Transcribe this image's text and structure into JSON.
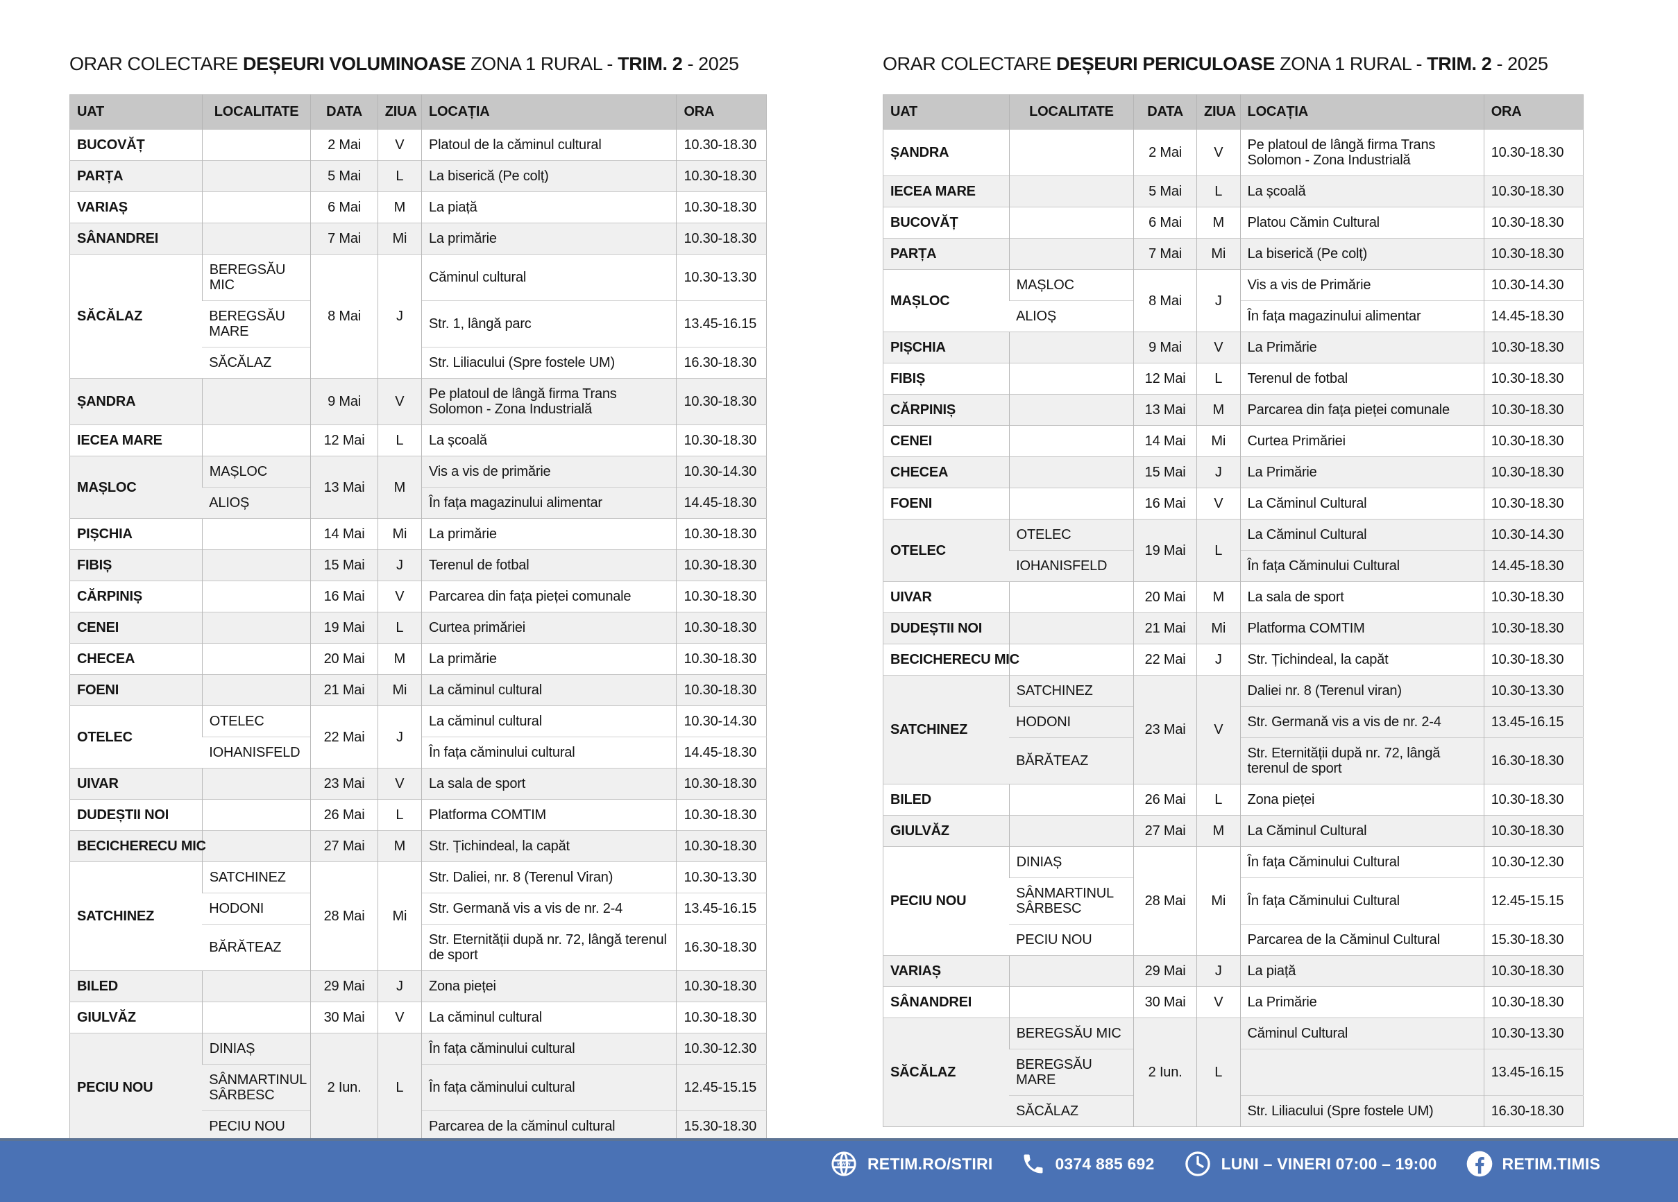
{
  "colors": {
    "footer_blue": "#4a72b5",
    "footer_edge": "#5d7494",
    "header_gray": "#c7c7c7",
    "row_alt_gray": "#f0f0f0"
  },
  "tables": [
    {
      "title": {
        "prefix": "ORAR COLECTARE ",
        "category": "DEȘEURI VOLUMINOASE",
        "middle": " ZONA 1 RURAL - ",
        "trim": "TRIM. 2",
        "suffix": " - 2025"
      },
      "columns": [
        "UAT",
        "LOCALITATE",
        "DATA",
        "ZIUA",
        "LOCAȚIA",
        "ORA"
      ],
      "groups": [
        {
          "uat": "BUCOVĂȚ",
          "date": "2 Mai",
          "day": "V",
          "sub": [
            {
              "loc": "",
              "place": "Platoul de la căminul cultural",
              "time": "10.30-18.30"
            }
          ]
        },
        {
          "uat": "PARȚA",
          "date": "5 Mai",
          "day": "L",
          "sub": [
            {
              "loc": "",
              "place": "La biserică (Pe colț)",
              "time": "10.30-18.30"
            }
          ]
        },
        {
          "uat": "VARIAȘ",
          "date": "6 Mai",
          "day": "M",
          "sub": [
            {
              "loc": "",
              "place": "La piață",
              "time": "10.30-18.30"
            }
          ]
        },
        {
          "uat": "SÂNANDREI",
          "date": "7 Mai",
          "day": "Mi",
          "sub": [
            {
              "loc": "",
              "place": "La primărie",
              "time": "10.30-18.30"
            }
          ]
        },
        {
          "uat": "SĂCĂLAZ",
          "date": "8 Mai",
          "day": "J",
          "sub": [
            {
              "loc": "BEREGSĂU MIC",
              "place": "Căminul cultural",
              "time": "10.30-13.30"
            },
            {
              "loc": "BEREGSĂU MARE",
              "place": "Str. 1, lângă parc",
              "time": "13.45-16.15"
            },
            {
              "loc": "SĂCĂLAZ",
              "place": "Str. Liliacului (Spre fostele UM)",
              "time": "16.30-18.30"
            }
          ]
        },
        {
          "uat": "ȘANDRA",
          "date": "9 Mai",
          "day": "V",
          "sub": [
            {
              "loc": "",
              "place": "Pe platoul de lângă firma Trans Solomon - Zona Industrială",
              "time": "10.30-18.30"
            }
          ]
        },
        {
          "uat": "IECEA MARE",
          "date": "12 Mai",
          "day": "L",
          "sub": [
            {
              "loc": "",
              "place": "La școală",
              "time": "10.30-18.30"
            }
          ]
        },
        {
          "uat": "MAȘLOC",
          "date": "13 Mai",
          "day": "M",
          "sub": [
            {
              "loc": "MAȘLOC",
              "place": "Vis a vis de primărie",
              "time": "10.30-14.30"
            },
            {
              "loc": "ALIOȘ",
              "place": "În fața magazinului alimentar",
              "time": "14.45-18.30"
            }
          ]
        },
        {
          "uat": "PIȘCHIA",
          "date": "14 Mai",
          "day": "Mi",
          "sub": [
            {
              "loc": "",
              "place": "La primărie",
              "time": "10.30-18.30"
            }
          ]
        },
        {
          "uat": "FIBIȘ",
          "date": "15 Mai",
          "day": "J",
          "sub": [
            {
              "loc": "",
              "place": "Terenul de fotbal",
              "time": "10.30-18.30"
            }
          ]
        },
        {
          "uat": "CĂRPINIȘ",
          "date": "16 Mai",
          "day": "V",
          "sub": [
            {
              "loc": "",
              "place": "Parcarea din fața pieței comunale",
              "time": "10.30-18.30"
            }
          ]
        },
        {
          "uat": "CENEI",
          "date": "19 Mai",
          "day": "L",
          "sub": [
            {
              "loc": "",
              "place": "Curtea primăriei",
              "time": "10.30-18.30"
            }
          ]
        },
        {
          "uat": "CHECEA",
          "date": "20 Mai",
          "day": "M",
          "sub": [
            {
              "loc": "",
              "place": "La primărie",
              "time": "10.30-18.30"
            }
          ]
        },
        {
          "uat": "FOENI",
          "date": "21 Mai",
          "day": "Mi",
          "sub": [
            {
              "loc": "",
              "place": "La căminul cultural",
              "time": "10.30-18.30"
            }
          ]
        },
        {
          "uat": "OTELEC",
          "date": "22 Mai",
          "day": "J",
          "sub": [
            {
              "loc": "OTELEC",
              "place": "La căminul cultural",
              "time": "10.30-14.30"
            },
            {
              "loc": "IOHANISFELD",
              "place": "În fața căminului cultural",
              "time": "14.45-18.30"
            }
          ]
        },
        {
          "uat": "UIVAR",
          "date": "23 Mai",
          "day": "V",
          "sub": [
            {
              "loc": "",
              "place": "La sala de sport",
              "time": "10.30-18.30"
            }
          ]
        },
        {
          "uat": "DUDEȘTII NOI",
          "date": "26 Mai",
          "day": "L",
          "sub": [
            {
              "loc": "",
              "place": "Platforma COMTIM",
              "time": "10.30-18.30"
            }
          ]
        },
        {
          "uat": "BECICHERECU MIC",
          "date": "27 Mai",
          "day": "M",
          "sub": [
            {
              "loc": "",
              "place": "Str. Țichindeal, la capăt",
              "time": "10.30-18.30"
            }
          ]
        },
        {
          "uat": "SATCHINEZ",
          "date": "28 Mai",
          "day": "Mi",
          "sub": [
            {
              "loc": "SATCHINEZ",
              "place": "Str. Daliei, nr. 8 (Terenul Viran)",
              "time": "10.30-13.30"
            },
            {
              "loc": "HODONI",
              "place": "Str. Germană vis a vis de nr. 2-4",
              "time": "13.45-16.15"
            },
            {
              "loc": "BĂRĂTEAZ",
              "place": "Str. Eternității după nr. 72, lângă terenul de sport",
              "time": "16.30-18.30"
            }
          ]
        },
        {
          "uat": "BILED",
          "date": "29 Mai",
          "day": "J",
          "sub": [
            {
              "loc": "",
              "place": "Zona pieței",
              "time": "10.30-18.30"
            }
          ]
        },
        {
          "uat": "GIULVĂZ",
          "date": "30 Mai",
          "day": "V",
          "sub": [
            {
              "loc": "",
              "place": "La căminul cultural",
              "time": "10.30-18.30"
            }
          ]
        },
        {
          "uat": "PECIU NOU",
          "date": "2 Iun.",
          "day": "L",
          "sub": [
            {
              "loc": "DINIAȘ",
              "place": "În fața căminului cultural",
              "time": "10.30-12.30"
            },
            {
              "loc": "SÂNMARTINUL SÂRBESC",
              "place": "În fața căminului cultural",
              "time": "12.45-15.15"
            },
            {
              "loc": "PECIU NOU",
              "place": "Parcarea de la căminul cultural",
              "time": "15.30-18.30"
            }
          ]
        }
      ]
    },
    {
      "title": {
        "prefix": "ORAR COLECTARE ",
        "category": "DEȘEURI PERICULOASE",
        "middle": " ZONA 1 RURAL - ",
        "trim": "TRIM. 2",
        "suffix": " - 2025"
      },
      "columns": [
        "UAT",
        "LOCALITATE",
        "DATA",
        "ZIUA",
        "LOCAȚIA",
        "ORA"
      ],
      "groups": [
        {
          "uat": "ȘANDRA",
          "date": "2 Mai",
          "day": "V",
          "sub": [
            {
              "loc": "",
              "place": "Pe platoul de lângă firma Trans Solomon - Zona Industrială",
              "time": "10.30-18.30"
            }
          ]
        },
        {
          "uat": "IECEA MARE",
          "date": "5 Mai",
          "day": "L",
          "sub": [
            {
              "loc": "",
              "place": "La școală",
              "time": "10.30-18.30"
            }
          ]
        },
        {
          "uat": "BUCOVĂȚ",
          "date": "6 Mai",
          "day": "M",
          "sub": [
            {
              "loc": "",
              "place": "Platou Cămin Cultural",
              "time": "10.30-18.30"
            }
          ]
        },
        {
          "uat": "PARȚA",
          "date": "7 Mai",
          "day": "Mi",
          "sub": [
            {
              "loc": "",
              "place": "La biserică (Pe colț)",
              "time": "10.30-18.30"
            }
          ]
        },
        {
          "uat": "MAȘLOC",
          "date": "8 Mai",
          "day": "J",
          "sub": [
            {
              "loc": "MAȘLOC",
              "place": "Vis a vis de Primărie",
              "time": "10.30-14.30"
            },
            {
              "loc": "ALIOȘ",
              "place": "În fața magazinului alimentar",
              "time": "14.45-18.30"
            }
          ]
        },
        {
          "uat": "PIȘCHIA",
          "date": "9 Mai",
          "day": "V",
          "sub": [
            {
              "loc": "",
              "place": "La Primărie",
              "time": "10.30-18.30"
            }
          ]
        },
        {
          "uat": "FIBIȘ",
          "date": "12 Mai",
          "day": "L",
          "sub": [
            {
              "loc": "",
              "place": "Terenul de fotbal",
              "time": "10.30-18.30"
            }
          ]
        },
        {
          "uat": "CĂRPINIȘ",
          "date": "13 Mai",
          "day": "M",
          "sub": [
            {
              "loc": "",
              "place": "Parcarea din fața pieței comunale",
              "time": "10.30-18.30"
            }
          ]
        },
        {
          "uat": "CENEI",
          "date": "14 Mai",
          "day": "Mi",
          "sub": [
            {
              "loc": "",
              "place": "Curtea Primăriei",
              "time": "10.30-18.30"
            }
          ]
        },
        {
          "uat": "CHECEA",
          "date": "15 Mai",
          "day": "J",
          "sub": [
            {
              "loc": "",
              "place": "La Primărie",
              "time": "10.30-18.30"
            }
          ]
        },
        {
          "uat": "FOENI",
          "date": "16 Mai",
          "day": "V",
          "sub": [
            {
              "loc": "",
              "place": "La Căminul Cultural",
              "time": "10.30-18.30"
            }
          ]
        },
        {
          "uat": "OTELEC",
          "date": "19 Mai",
          "day": "L",
          "sub": [
            {
              "loc": "OTELEC",
              "place": "La Căminul Cultural",
              "time": "10.30-14.30"
            },
            {
              "loc": "IOHANISFELD",
              "place": "În fața Căminului Cultural",
              "time": "14.45-18.30"
            }
          ]
        },
        {
          "uat": "UIVAR",
          "date": "20 Mai",
          "day": "M",
          "sub": [
            {
              "loc": "",
              "place": "La sala de sport",
              "time": "10.30-18.30"
            }
          ]
        },
        {
          "uat": "DUDEȘTII NOI",
          "date": "21 Mai",
          "day": "Mi",
          "sub": [
            {
              "loc": "",
              "place": "Platforma COMTIM",
              "time": "10.30-18.30"
            }
          ]
        },
        {
          "uat": "BECICHERECU MIC",
          "date": "22 Mai",
          "day": "J",
          "sub": [
            {
              "loc": "",
              "place": "Str. Țichindeal, la capăt",
              "time": "10.30-18.30"
            }
          ]
        },
        {
          "uat": "SATCHINEZ",
          "date": "23 Mai",
          "day": "V",
          "sub": [
            {
              "loc": "SATCHINEZ",
              "place": "Daliei nr. 8 (Terenul viran)",
              "time": "10.30-13.30"
            },
            {
              "loc": "HODONI",
              "place": "Str. Germană vis a vis de nr. 2-4",
              "time": "13.45-16.15"
            },
            {
              "loc": "BĂRĂTEAZ",
              "place": "Str. Eternității după nr. 72, lângă terenul de sport",
              "time": "16.30-18.30"
            }
          ]
        },
        {
          "uat": "BILED",
          "date": "26 Mai",
          "day": "L",
          "sub": [
            {
              "loc": "",
              "place": "Zona pieței",
              "time": "10.30-18.30"
            }
          ]
        },
        {
          "uat": "GIULVĂZ",
          "date": "27 Mai",
          "day": "M",
          "sub": [
            {
              "loc": "",
              "place": "La Căminul Cultural",
              "time": "10.30-18.30"
            }
          ]
        },
        {
          "uat": "PECIU NOU",
          "date": "28 Mai",
          "day": "Mi",
          "sub": [
            {
              "loc": "DINIAȘ",
              "place": "În fața Căminului Cultural",
              "time": "10.30-12.30"
            },
            {
              "loc": "SÂNMARTINUL SÂRBESC",
              "place": "În fața Căminului Cultural",
              "time": "12.45-15.15"
            },
            {
              "loc": "PECIU NOU",
              "place": "Parcarea de la Căminul Cultural",
              "time": "15.30-18.30"
            }
          ]
        },
        {
          "uat": "VARIAȘ",
          "date": "29 Mai",
          "day": "J",
          "sub": [
            {
              "loc": "",
              "place": "La piață",
              "time": "10.30-18.30"
            }
          ]
        },
        {
          "uat": "SÂNANDREI",
          "date": "30 Mai",
          "day": "V",
          "sub": [
            {
              "loc": "",
              "place": "La Primărie",
              "time": "10.30-18.30"
            }
          ]
        },
        {
          "uat": "SĂCĂLAZ",
          "date": "2 Iun.",
          "day": "L",
          "sub": [
            {
              "loc": "BEREGSĂU MIC",
              "place": "Căminul Cultural",
              "time": "10.30-13.30"
            },
            {
              "loc": "BEREGSĂU MARE",
              "place": "",
              "time": "13.45-16.15"
            },
            {
              "loc": "SĂCĂLAZ",
              "place": "Str. Liliacului (Spre fostele UM)",
              "time": "16.30-18.30"
            }
          ]
        }
      ]
    }
  ],
  "footer": {
    "website": "RETIM.RO/STIRI",
    "phone": "0374 885 692",
    "hours": "LUNI – VINERI 07:00 – 19:00",
    "facebook": "RETIM.TIMIS"
  }
}
